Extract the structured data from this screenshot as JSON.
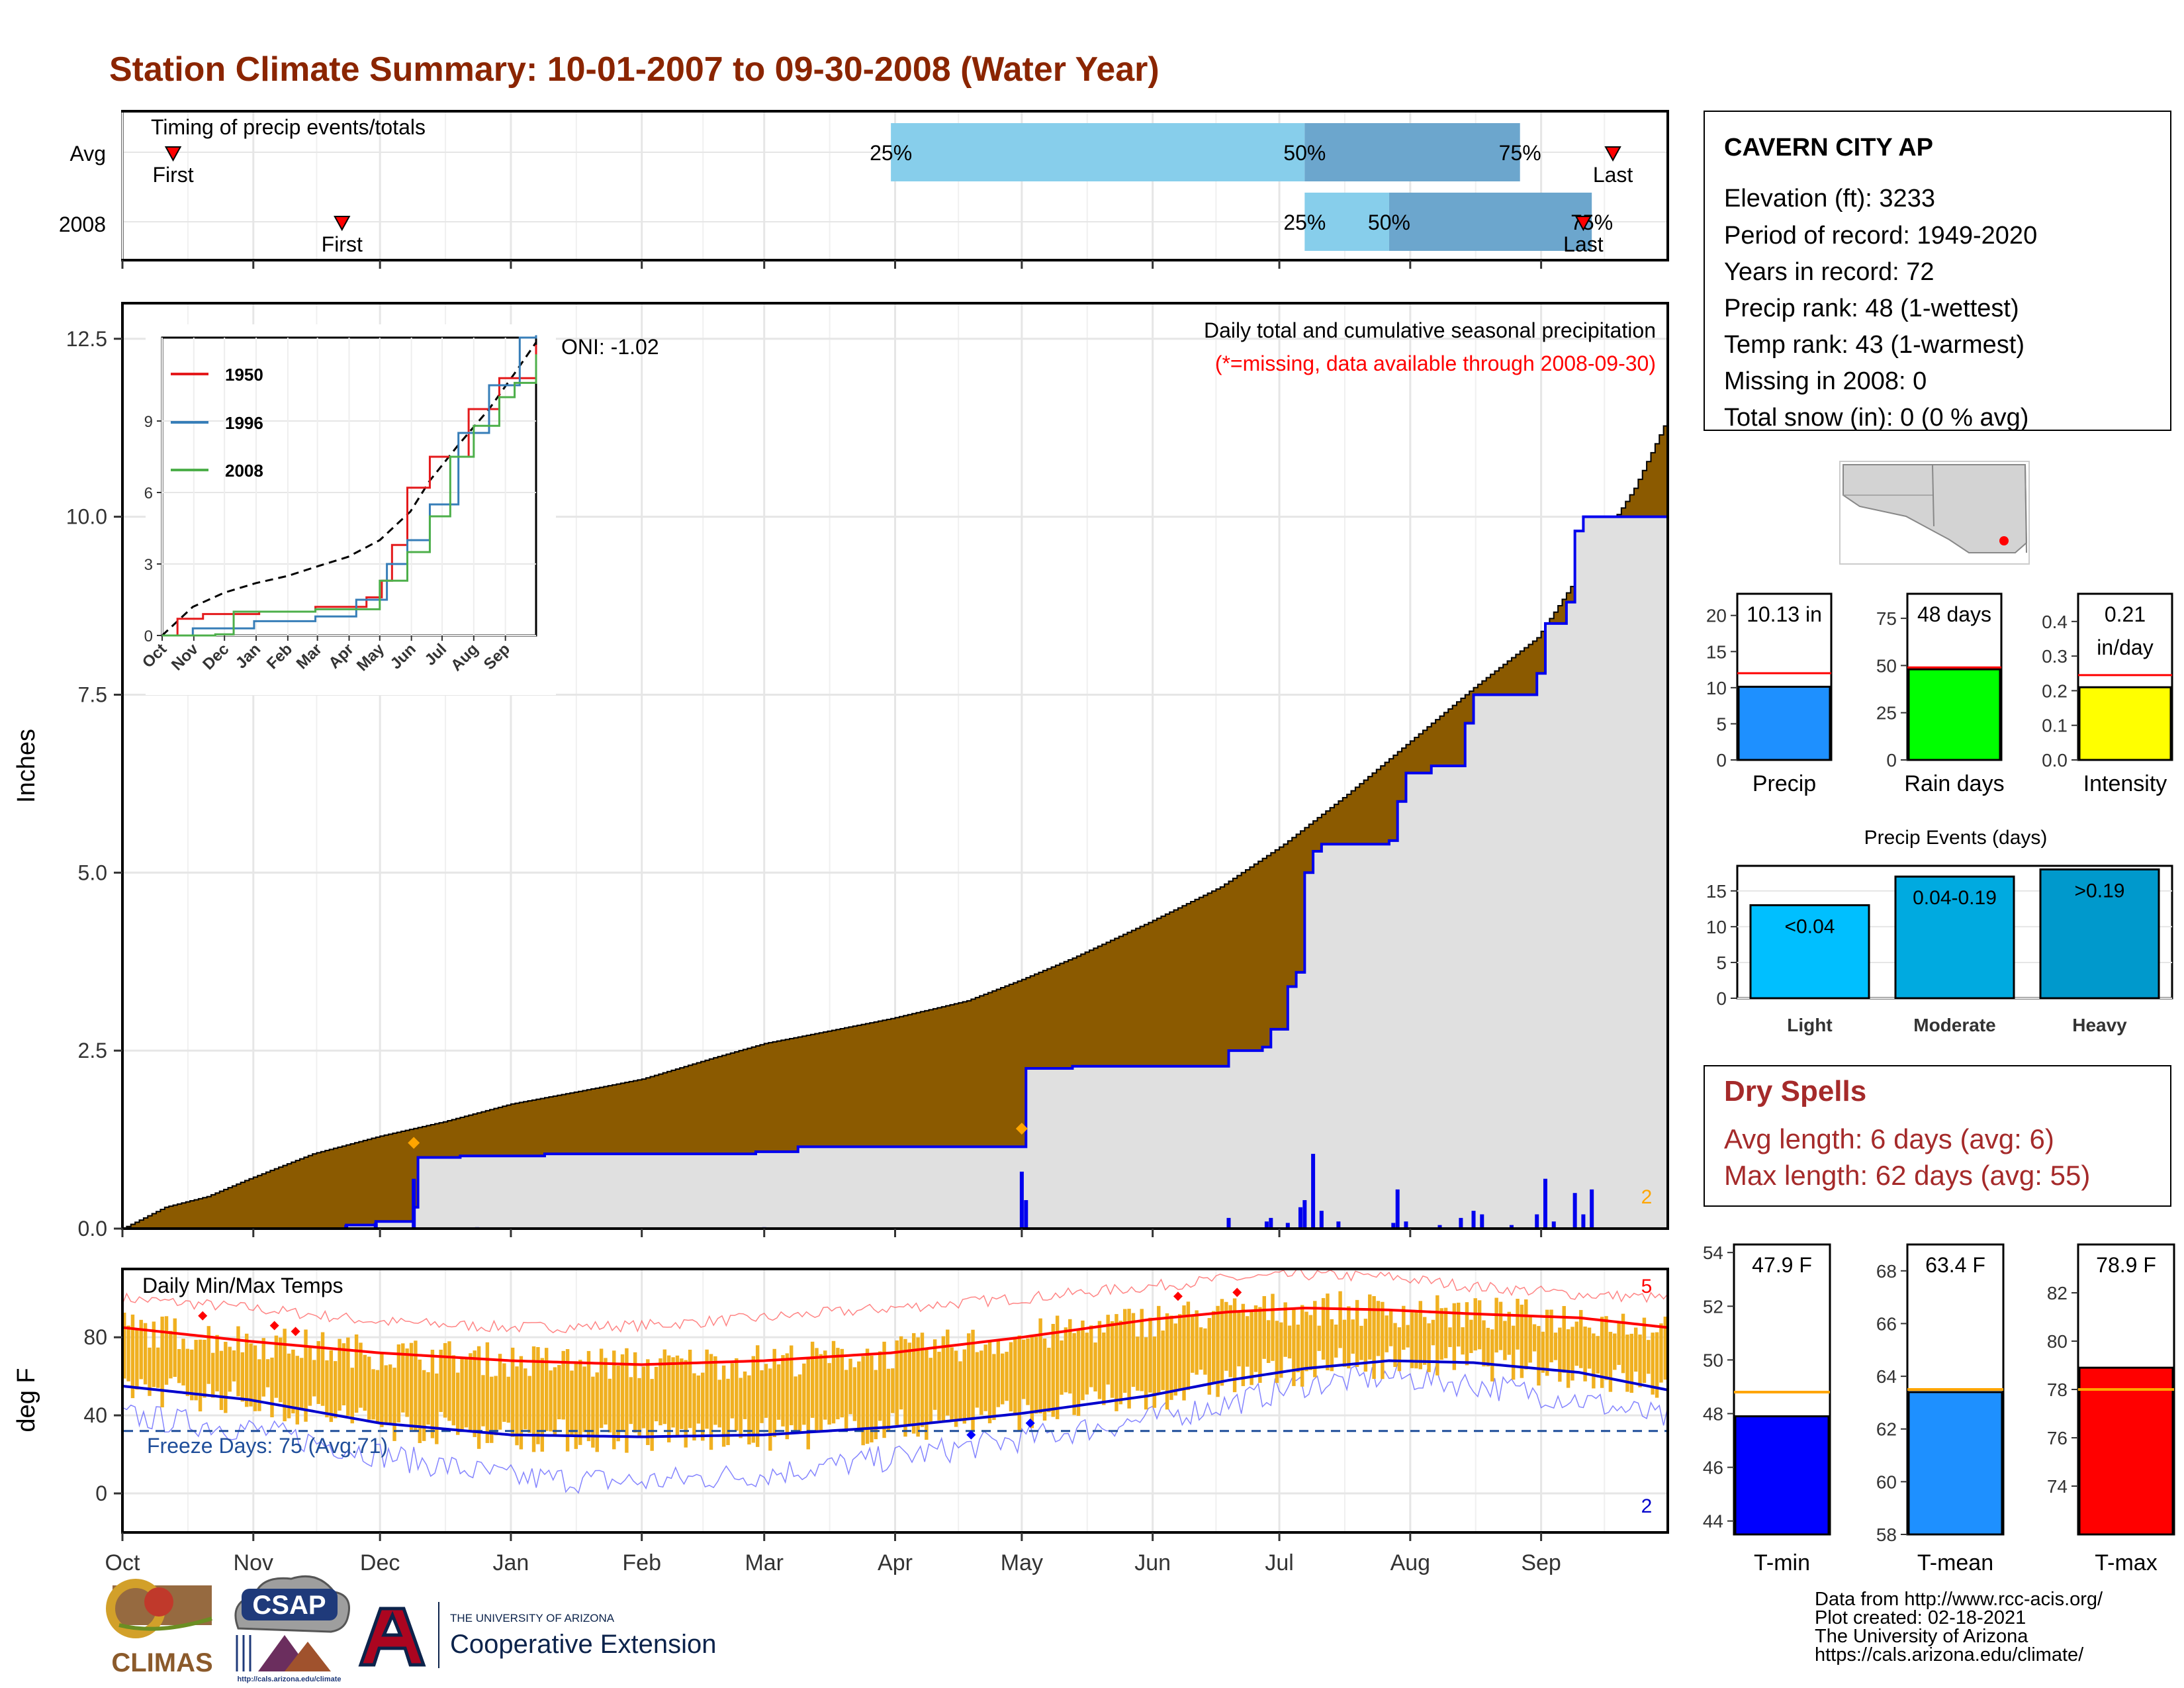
{
  "title": "Station Climate Summary: 10-01-2007 to 09-30-2008 (Water Year)",
  "colors": {
    "title": "#8B2500",
    "cumulative_avg_fill": "#8B5A00",
    "cumulative_obs_fill": "#E0E0E0",
    "obs_line": "#0000EE",
    "temp_bar": "#F0B020",
    "tmax_avg": "#FF0000",
    "tmin_avg": "#0000CC",
    "light_blue": "#87CEEB",
    "mid_blue": "#6CA6CD",
    "dry_spells": "#A52A2A",
    "precip_bar": "#1E90FF",
    "raindays_bar": "#00FF00",
    "intensity_bar": "#FFFF00",
    "event_light": "#00BFFF",
    "event_moderate": "#00AAE0",
    "event_heavy": "#0099CC",
    "tmin_bar": "#0000FF",
    "tmean_bar": "#1E90FF",
    "tmax_bar": "#FF0000"
  },
  "timing_panel": {
    "label": "Timing of precip events/totals",
    "rows": [
      {
        "label": "Avg",
        "first_day": 12,
        "last_day": 353,
        "p25_day": 182,
        "p50_day": 280,
        "p75_day": 331,
        "first_label": "First",
        "last_label": "Last",
        "p25_label": "25%",
        "p50_label": "50%",
        "p75_label": "75%"
      },
      {
        "label": "2008",
        "first_day": 52,
        "last_day": 346,
        "p25_day": 280,
        "p50_day": 300,
        "p75_day": 348,
        "first_label": "First",
        "last_label": "Last",
        "p25_label": "25%",
        "p50_label": "50%",
        "p75_label": "75%"
      }
    ]
  },
  "precip_panel": {
    "ylabel": "Inches",
    "yticks": [
      "0.0",
      "2.5",
      "5.0",
      "7.5",
      "10.0",
      "12.5"
    ],
    "ylim": [
      0,
      13
    ],
    "header": "Daily total and cumulative seasonal precipitation",
    "missing_note": "(*=missing, data available through 2008-09-30)",
    "oni": "ONI: -1.02",
    "corner_count": "2",
    "cum_avg_points": [
      [
        0,
        0
      ],
      [
        10,
        0.3
      ],
      [
        20,
        0.45
      ],
      [
        30,
        0.7
      ],
      [
        45,
        1.05
      ],
      [
        61,
        1.3
      ],
      [
        76,
        1.5
      ],
      [
        92,
        1.75
      ],
      [
        110,
        1.95
      ],
      [
        123,
        2.1
      ],
      [
        140,
        2.4
      ],
      [
        152,
        2.6
      ],
      [
        165,
        2.75
      ],
      [
        182,
        2.95
      ],
      [
        200,
        3.2
      ],
      [
        213,
        3.5
      ],
      [
        225,
        3.8
      ],
      [
        243,
        4.3
      ],
      [
        260,
        4.8
      ],
      [
        275,
        5.4
      ],
      [
        290,
        6.1
      ],
      [
        304,
        6.8
      ],
      [
        320,
        7.6
      ],
      [
        335,
        8.3
      ],
      [
        345,
        9.2
      ],
      [
        358,
        10.4
      ],
      [
        366,
        11.4
      ]
    ],
    "cum_obs_points": [
      [
        0,
        0
      ],
      [
        52,
        0
      ],
      [
        53,
        0.05
      ],
      [
        60,
        0.1
      ],
      [
        69,
        0.3
      ],
      [
        70,
        1.0
      ],
      [
        80,
        1.02
      ],
      [
        100,
        1.05
      ],
      [
        150,
        1.08
      ],
      [
        160,
        1.15
      ],
      [
        213,
        1.15
      ],
      [
        214,
        2.25
      ],
      [
        225,
        2.28
      ],
      [
        260,
        2.28
      ],
      [
        262,
        2.5
      ],
      [
        270,
        2.55
      ],
      [
        272,
        2.8
      ],
      [
        276,
        3.4
      ],
      [
        278,
        3.6
      ],
      [
        280,
        5.0
      ],
      [
        282,
        5.3
      ],
      [
        284,
        5.4
      ],
      [
        300,
        5.45
      ],
      [
        302,
        6.0
      ],
      [
        304,
        6.4
      ],
      [
        310,
        6.5
      ],
      [
        318,
        7.1
      ],
      [
        320,
        7.5
      ],
      [
        335,
        7.8
      ],
      [
        337,
        8.5
      ],
      [
        342,
        8.8
      ],
      [
        344,
        9.8
      ],
      [
        346,
        10.0
      ],
      [
        366,
        10.0
      ]
    ],
    "daily_precip": [
      [
        53,
        0.05
      ],
      [
        60,
        0.08
      ],
      [
        69,
        0.7
      ],
      [
        84,
        0.02
      ],
      [
        152,
        0.02
      ],
      [
        213,
        0.8
      ],
      [
        214,
        0.4
      ],
      [
        262,
        0.15
      ],
      [
        271,
        0.1
      ],
      [
        272,
        0.15
      ],
      [
        276,
        0.08
      ],
      [
        279,
        0.3
      ],
      [
        280,
        0.4
      ],
      [
        282,
        1.05
      ],
      [
        284,
        0.25
      ],
      [
        288,
        0.1
      ],
      [
        301,
        0.08
      ],
      [
        302,
        0.55
      ],
      [
        304,
        0.1
      ],
      [
        312,
        0.05
      ],
      [
        317,
        0.15
      ],
      [
        320,
        0.25
      ],
      [
        322,
        0.2
      ],
      [
        329,
        0.05
      ],
      [
        335,
        0.2
      ],
      [
        337,
        0.7
      ],
      [
        339,
        0.1
      ],
      [
        344,
        0.5
      ],
      [
        346,
        0.2
      ],
      [
        348,
        0.55
      ]
    ],
    "markers": [
      {
        "day": 69,
        "value": 1.0
      },
      {
        "day": 213,
        "value": 1.2
      }
    ]
  },
  "inset": {
    "yticks": [
      "0",
      "3",
      "6",
      "9"
    ],
    "ylim": [
      0,
      12.5
    ],
    "month_labels": [
      "Oct",
      "Nov",
      "Dec",
      "Jan",
      "Feb",
      "Mar",
      "Apr",
      "May",
      "Jun",
      "Jul",
      "Aug",
      "Sep"
    ],
    "series": [
      {
        "name": "1950",
        "color": "#E41A1C",
        "points": [
          [
            0,
            0
          ],
          [
            15,
            0.7
          ],
          [
            40,
            0.9
          ],
          [
            95,
            1.0
          ],
          [
            150,
            1.2
          ],
          [
            200,
            1.6
          ],
          [
            215,
            2.3
          ],
          [
            225,
            3.8
          ],
          [
            240,
            6.2
          ],
          [
            262,
            7.5
          ],
          [
            300,
            9.5
          ],
          [
            330,
            10.8
          ],
          [
            366,
            12.2
          ]
        ]
      },
      {
        "name": "1996",
        "color": "#377EB8",
        "points": [
          [
            0,
            0
          ],
          [
            30,
            0.3
          ],
          [
            90,
            0.6
          ],
          [
            150,
            0.8
          ],
          [
            190,
            1.5
          ],
          [
            220,
            3.0
          ],
          [
            240,
            4.0
          ],
          [
            262,
            5.5
          ],
          [
            290,
            8.5
          ],
          [
            320,
            10.5
          ],
          [
            350,
            12.5
          ],
          [
            366,
            12.6
          ]
        ]
      },
      {
        "name": "2008",
        "color": "#4DAF4A",
        "points": [
          [
            0,
            0
          ],
          [
            52,
            0.05
          ],
          [
            70,
            1.0
          ],
          [
            150,
            1.1
          ],
          [
            213,
            2.3
          ],
          [
            240,
            3.5
          ],
          [
            262,
            5.0
          ],
          [
            282,
            7.5
          ],
          [
            305,
            8.8
          ],
          [
            330,
            10.0
          ],
          [
            345,
            10.6
          ],
          [
            366,
            11.8
          ]
        ]
      }
    ],
    "avg_points": [
      [
        0,
        0
      ],
      [
        30,
        1.2
      ],
      [
        61,
        1.8
      ],
      [
        92,
        2.2
      ],
      [
        123,
        2.5
      ],
      [
        152,
        2.9
      ],
      [
        182,
        3.3
      ],
      [
        213,
        4.0
      ],
      [
        243,
        5.2
      ],
      [
        262,
        6.5
      ],
      [
        290,
        8.0
      ],
      [
        320,
        9.5
      ],
      [
        345,
        11.0
      ],
      [
        366,
        12.3
      ]
    ]
  },
  "temp_panel": {
    "label": "Daily Min/Max Temps",
    "ylabel": "deg F",
    "yticks": [
      "0",
      "40",
      "80"
    ],
    "ylim": [
      -20,
      115
    ],
    "freeze_label": "Freeze Days: 75 (Avg:71)",
    "freeze_value": 32,
    "top_count": "5",
    "bottom_count": "2",
    "tmax_avg_points": [
      [
        0,
        85
      ],
      [
        30,
        78
      ],
      [
        61,
        72
      ],
      [
        92,
        68
      ],
      [
        123,
        66
      ],
      [
        152,
        68
      ],
      [
        182,
        72
      ],
      [
        213,
        80
      ],
      [
        243,
        89
      ],
      [
        262,
        93
      ],
      [
        280,
        95
      ],
      [
        300,
        94
      ],
      [
        320,
        92
      ],
      [
        345,
        90
      ],
      [
        366,
        85
      ]
    ],
    "tmin_avg_points": [
      [
        0,
        55
      ],
      [
        30,
        48
      ],
      [
        61,
        36
      ],
      [
        92,
        30
      ],
      [
        123,
        29
      ],
      [
        152,
        30
      ],
      [
        182,
        34
      ],
      [
        213,
        41
      ],
      [
        243,
        50
      ],
      [
        262,
        58
      ],
      [
        280,
        64
      ],
      [
        300,
        68
      ],
      [
        320,
        67
      ],
      [
        345,
        62
      ],
      [
        366,
        53
      ]
    ],
    "record_high_points": [
      [
        0,
        100
      ],
      [
        30,
        95
      ],
      [
        61,
        88
      ],
      [
        92,
        85
      ],
      [
        123,
        86
      ],
      [
        152,
        90
      ],
      [
        182,
        95
      ],
      [
        213,
        100
      ],
      [
        243,
        106
      ],
      [
        262,
        110
      ],
      [
        280,
        112
      ],
      [
        300,
        111
      ],
      [
        320,
        106
      ],
      [
        345,
        102
      ],
      [
        366,
        100
      ]
    ],
    "record_low_points": [
      [
        0,
        40
      ],
      [
        30,
        33
      ],
      [
        61,
        20
      ],
      [
        92,
        8
      ],
      [
        123,
        6
      ],
      [
        152,
        10
      ],
      [
        182,
        18
      ],
      [
        213,
        28
      ],
      [
        243,
        38
      ],
      [
        262,
        46
      ],
      [
        280,
        56
      ],
      [
        300,
        60
      ],
      [
        320,
        56
      ],
      [
        345,
        48
      ],
      [
        366,
        38
      ]
    ],
    "record_highs": [
      [
        19,
        91
      ],
      [
        36,
        86
      ],
      [
        41,
        83
      ],
      [
        250,
        101
      ],
      [
        264,
        103
      ]
    ],
    "record_lows": [
      [
        201,
        30
      ],
      [
        215,
        36
      ]
    ]
  },
  "x_axis": {
    "months": [
      "Oct",
      "Nov",
      "Dec",
      "Jan",
      "Feb",
      "Mar",
      "Apr",
      "May",
      "Jun",
      "Jul",
      "Aug",
      "Sep"
    ],
    "month_start_days": [
      0,
      31,
      61,
      92,
      123,
      152,
      183,
      213,
      244,
      274,
      305,
      336
    ],
    "total_days": 366
  },
  "station_box": {
    "name": "CAVERN CITY AP",
    "lines": [
      "Elevation (ft): 3233",
      "Period of record: 1949-2020",
      "Years in record: 72",
      "Precip rank: 48 (1-wettest)",
      "Temp rank: 43 (1-warmest)",
      "Missing in 2008: 0",
      "Total snow (in): 0 (0 % avg)"
    ]
  },
  "mini_bars": [
    {
      "label": "Precip",
      "value": 10.13,
      "avg": 12.0,
      "display": "10.13 in",
      "ylim": [
        0,
        23
      ],
      "yticks": [
        0,
        5,
        10,
        15,
        20
      ]
    },
    {
      "label": "Rain days",
      "value": 48,
      "avg": 49,
      "display": "48 days",
      "ylim": [
        0,
        88
      ],
      "yticks": [
        0,
        25,
        50,
        75
      ]
    },
    {
      "label": "Intensity",
      "value": 0.21,
      "avg": 0.245,
      "display": "0.21",
      "display2": "in/day",
      "ylim": [
        0,
        0.48
      ],
      "yticks": [
        0.0,
        0.1,
        0.2,
        0.3,
        0.4
      ]
    }
  ],
  "precip_events": {
    "title": "Precip Events (days)",
    "categories": [
      "Light",
      "Moderate",
      "Heavy"
    ],
    "values": [
      13,
      17,
      18
    ],
    "labels": [
      "<0.04",
      "0.04-0.19",
      ">0.19"
    ],
    "ylim": [
      0,
      18.5
    ],
    "yticks": [
      0,
      5,
      10,
      15
    ]
  },
  "dry_spells": {
    "title": "Dry Spells",
    "avg_line": "Avg length: 6 days (avg: 6)",
    "max_line": "Max length: 62 days (avg: 55)"
  },
  "temp_bars": [
    {
      "label": "T-min",
      "value": 47.9,
      "avg": 48.8,
      "display": "47.9 F",
      "ylim": [
        43.5,
        54.3
      ],
      "yticks": [
        44,
        46,
        48,
        50,
        52,
        54
      ]
    },
    {
      "label": "T-mean",
      "value": 63.4,
      "avg": 63.5,
      "display": "63.4 F",
      "ylim": [
        58,
        69
      ],
      "yticks": [
        58,
        60,
        62,
        64,
        66,
        68
      ]
    },
    {
      "label": "T-max",
      "value": 78.9,
      "avg": 78.0,
      "display": "78.9 F",
      "ylim": [
        72,
        84
      ],
      "yticks": [
        74,
        76,
        78,
        80,
        82
      ]
    }
  ],
  "footer": {
    "lines": [
      "Data from http://www.rcc-acis.org/",
      "Plot created: 02-18-2021",
      "The University of Arizona",
      "https://cals.arizona.edu/climate/"
    ],
    "climas": "CLIMAS",
    "csap": "CSAP",
    "csap_url": "http://cals.arizona.edu/climate",
    "ua_small": "THE UNIVERSITY OF ARIZONA",
    "ua_big": "Cooperative Extension"
  }
}
